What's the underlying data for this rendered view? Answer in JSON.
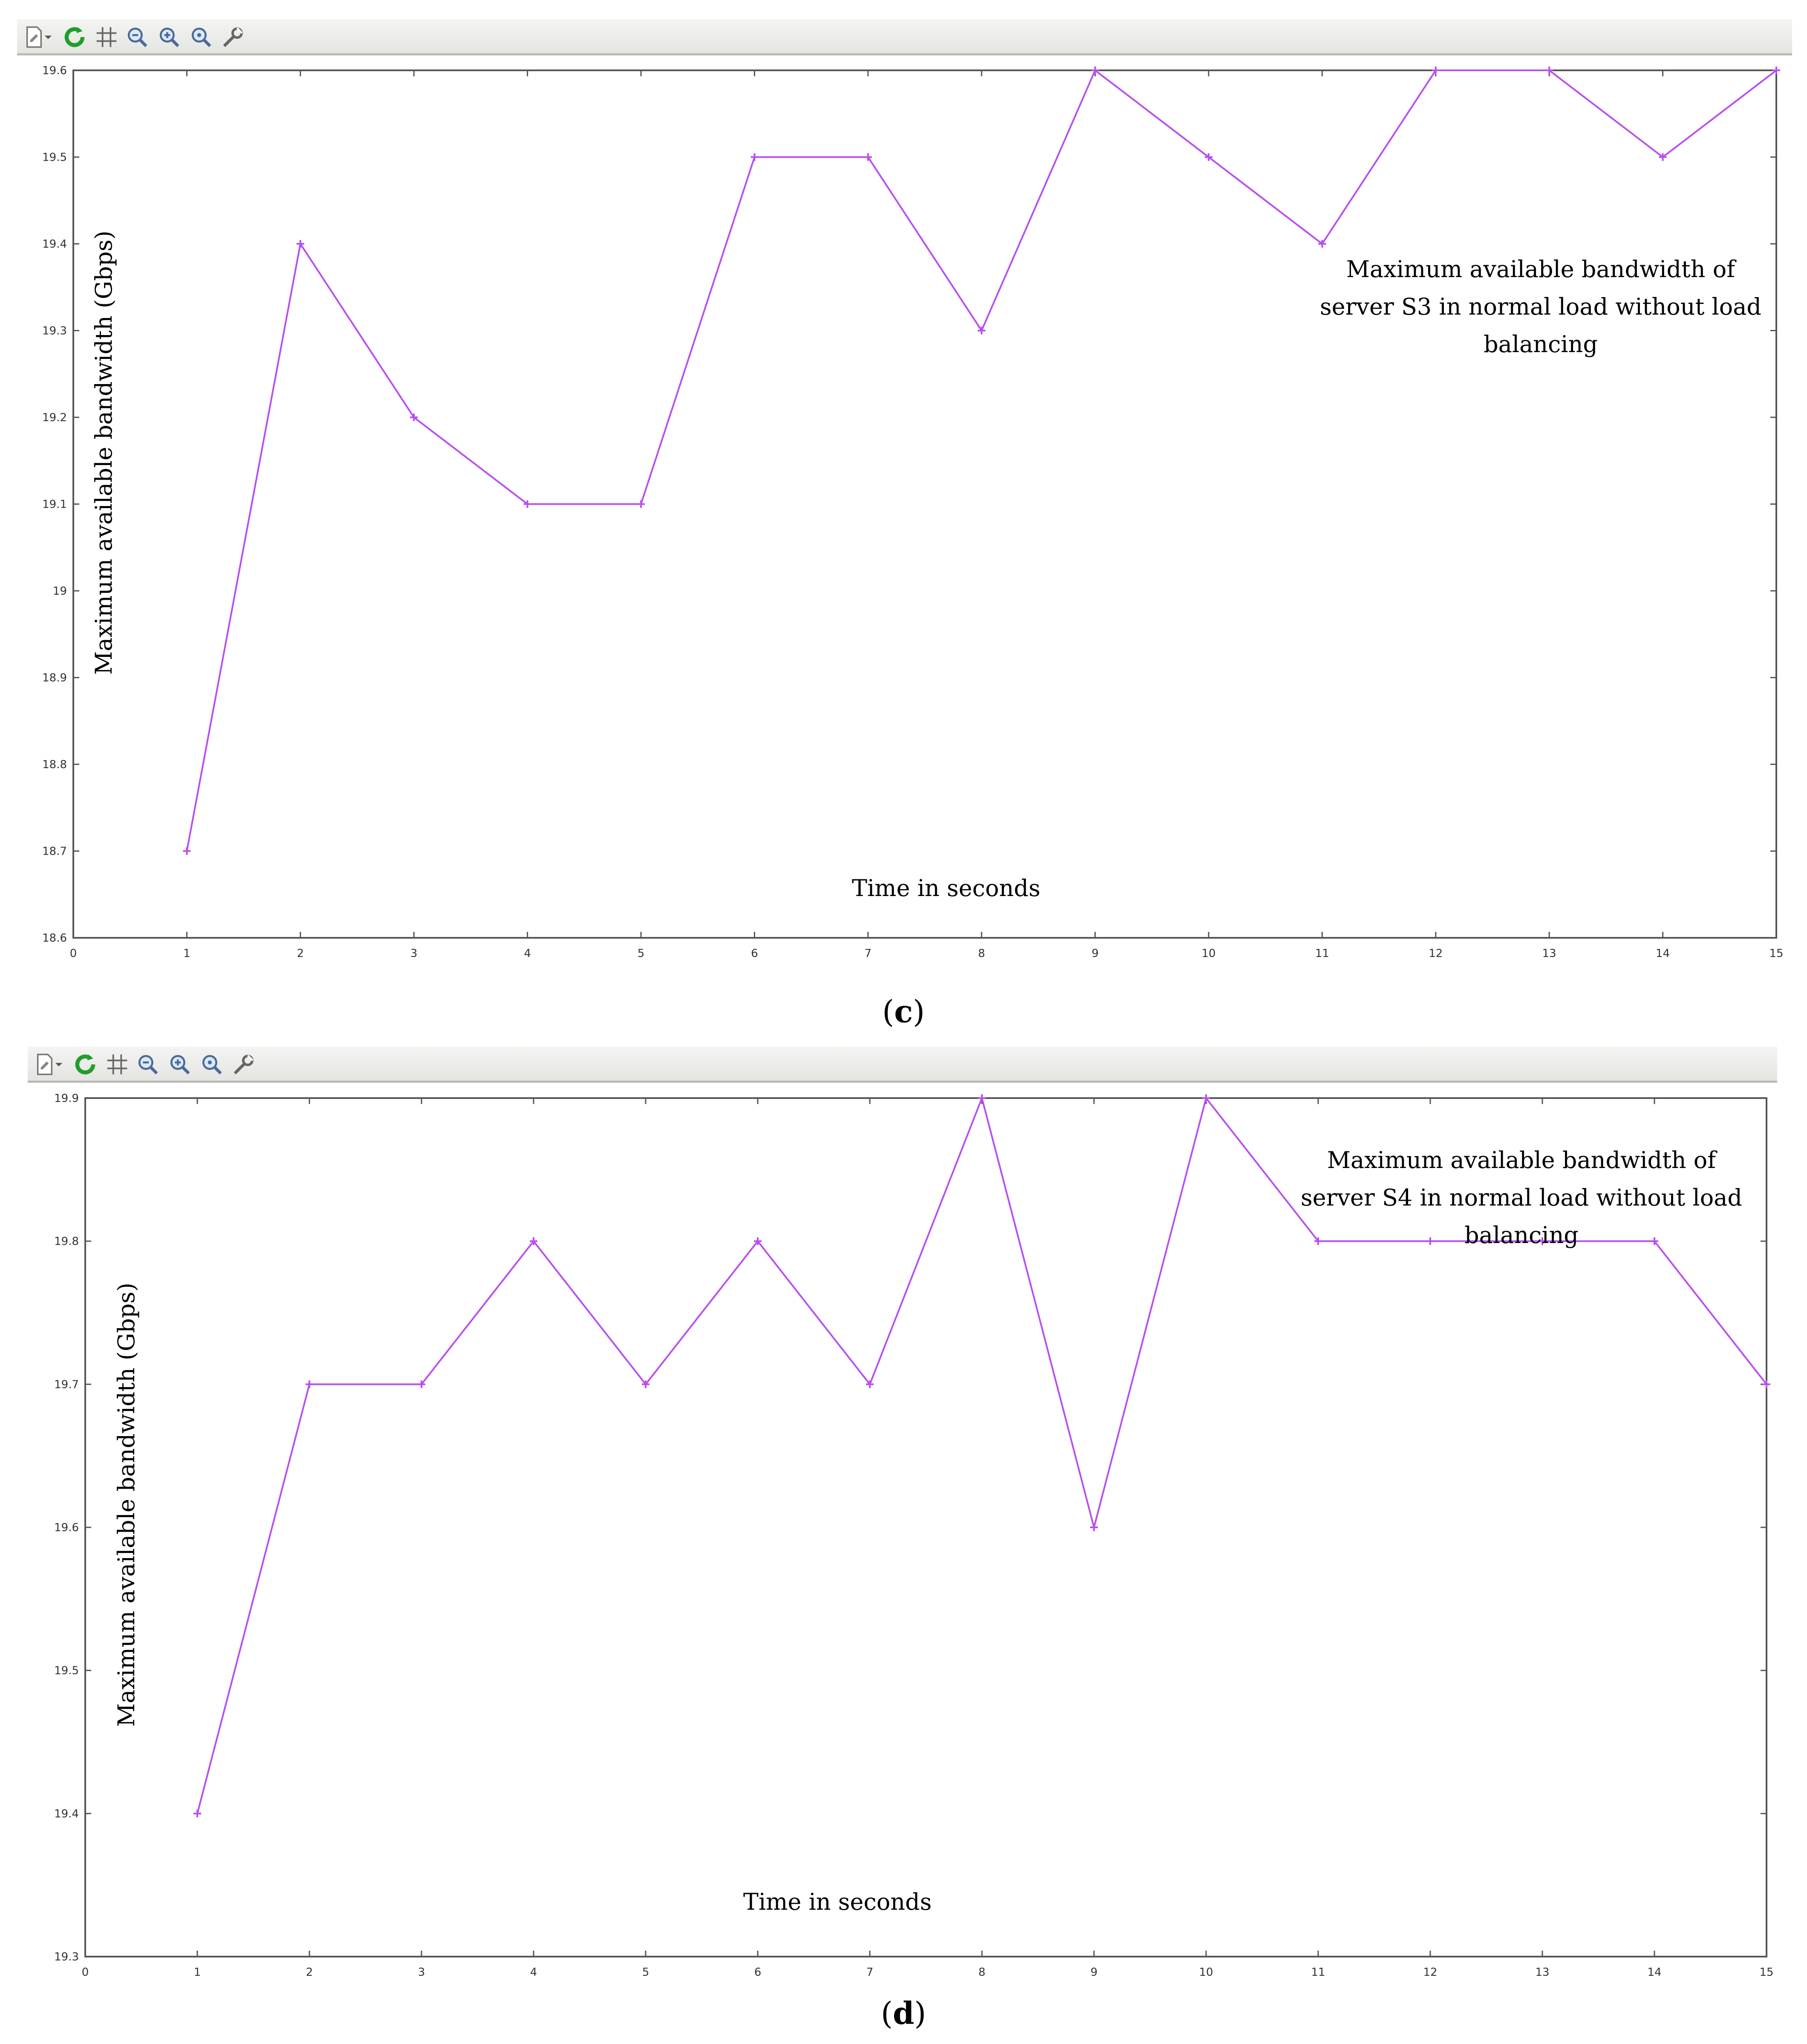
{
  "toolbar_icons": [
    "new-document-icon",
    "dropdown-arrow-icon",
    "refresh-icon",
    "grid-icon",
    "zoom-out-icon",
    "zoom-in-icon",
    "zoom-reset-icon",
    "settings-wrench-icon"
  ],
  "colors": {
    "series": "#b84ff0",
    "axis": "#555555",
    "toolbar_bg": "#ececea",
    "refresh": "#1e9e2a"
  },
  "captions": {
    "c_open": "(",
    "c_letter": "c",
    "c_close": ")",
    "d_open": "(",
    "d_letter": "d",
    "d_close": ")"
  },
  "chart_data": [
    {
      "type": "line",
      "title": "Maximum available bandwidth of server S3 in normal load without load balancing",
      "annotation_lines": [
        "Maximum available bandwidth of",
        "server S3 in normal load without load",
        "balancing"
      ],
      "xlabel": "Time in seconds",
      "ylabel": "Maximum available bandwidth (Gbps)",
      "xlim": [
        0,
        15
      ],
      "ylim": [
        18.6,
        19.6
      ],
      "xticks": [
        "0",
        "1",
        "2",
        "3",
        "4",
        "5",
        "6",
        "7",
        "8",
        "9",
        "10",
        "11",
        "12",
        "13",
        "14",
        "15"
      ],
      "yticks": [
        "18.6",
        "18.7",
        "18.8",
        "18.9",
        "19",
        "19.1",
        "19.2",
        "19.3",
        "19.4",
        "19.5",
        "19.6"
      ],
      "x": [
        1,
        2,
        3,
        4,
        5,
        6,
        7,
        8,
        9,
        10,
        11,
        12,
        13,
        14,
        15
      ],
      "y": [
        18.7,
        19.4,
        19.2,
        19.1,
        19.1,
        19.5,
        19.5,
        19.3,
        19.6,
        19.5,
        19.4,
        19.6,
        19.6,
        19.5,
        19.6
      ]
    },
    {
      "type": "line",
      "title": "Maximum available bandwidth of server S4 in normal load without load balancing",
      "annotation_lines": [
        "Maximum available bandwidth of",
        "server S4 in normal load without load",
        "balancing"
      ],
      "xlabel": "Time in seconds",
      "ylabel": "Maximum available bandwidth (Gbps)",
      "xlim": [
        0,
        15
      ],
      "ylim": [
        19.3,
        19.9
      ],
      "xticks": [
        "0",
        "1",
        "2",
        "3",
        "4",
        "5",
        "6",
        "7",
        "8",
        "9",
        "10",
        "11",
        "12",
        "13",
        "14",
        "15"
      ],
      "yticks": [
        "19.3",
        "19.4",
        "19.5",
        "19.6",
        "19.7",
        "19.8",
        "19.9"
      ],
      "x": [
        1,
        2,
        3,
        4,
        5,
        6,
        7,
        8,
        9,
        10,
        11,
        12,
        13,
        14,
        15
      ],
      "y": [
        19.4,
        19.7,
        19.7,
        19.8,
        19.7,
        19.8,
        19.7,
        19.9,
        19.6,
        19.9,
        19.8,
        19.8,
        19.8,
        19.8,
        19.7
      ]
    }
  ]
}
